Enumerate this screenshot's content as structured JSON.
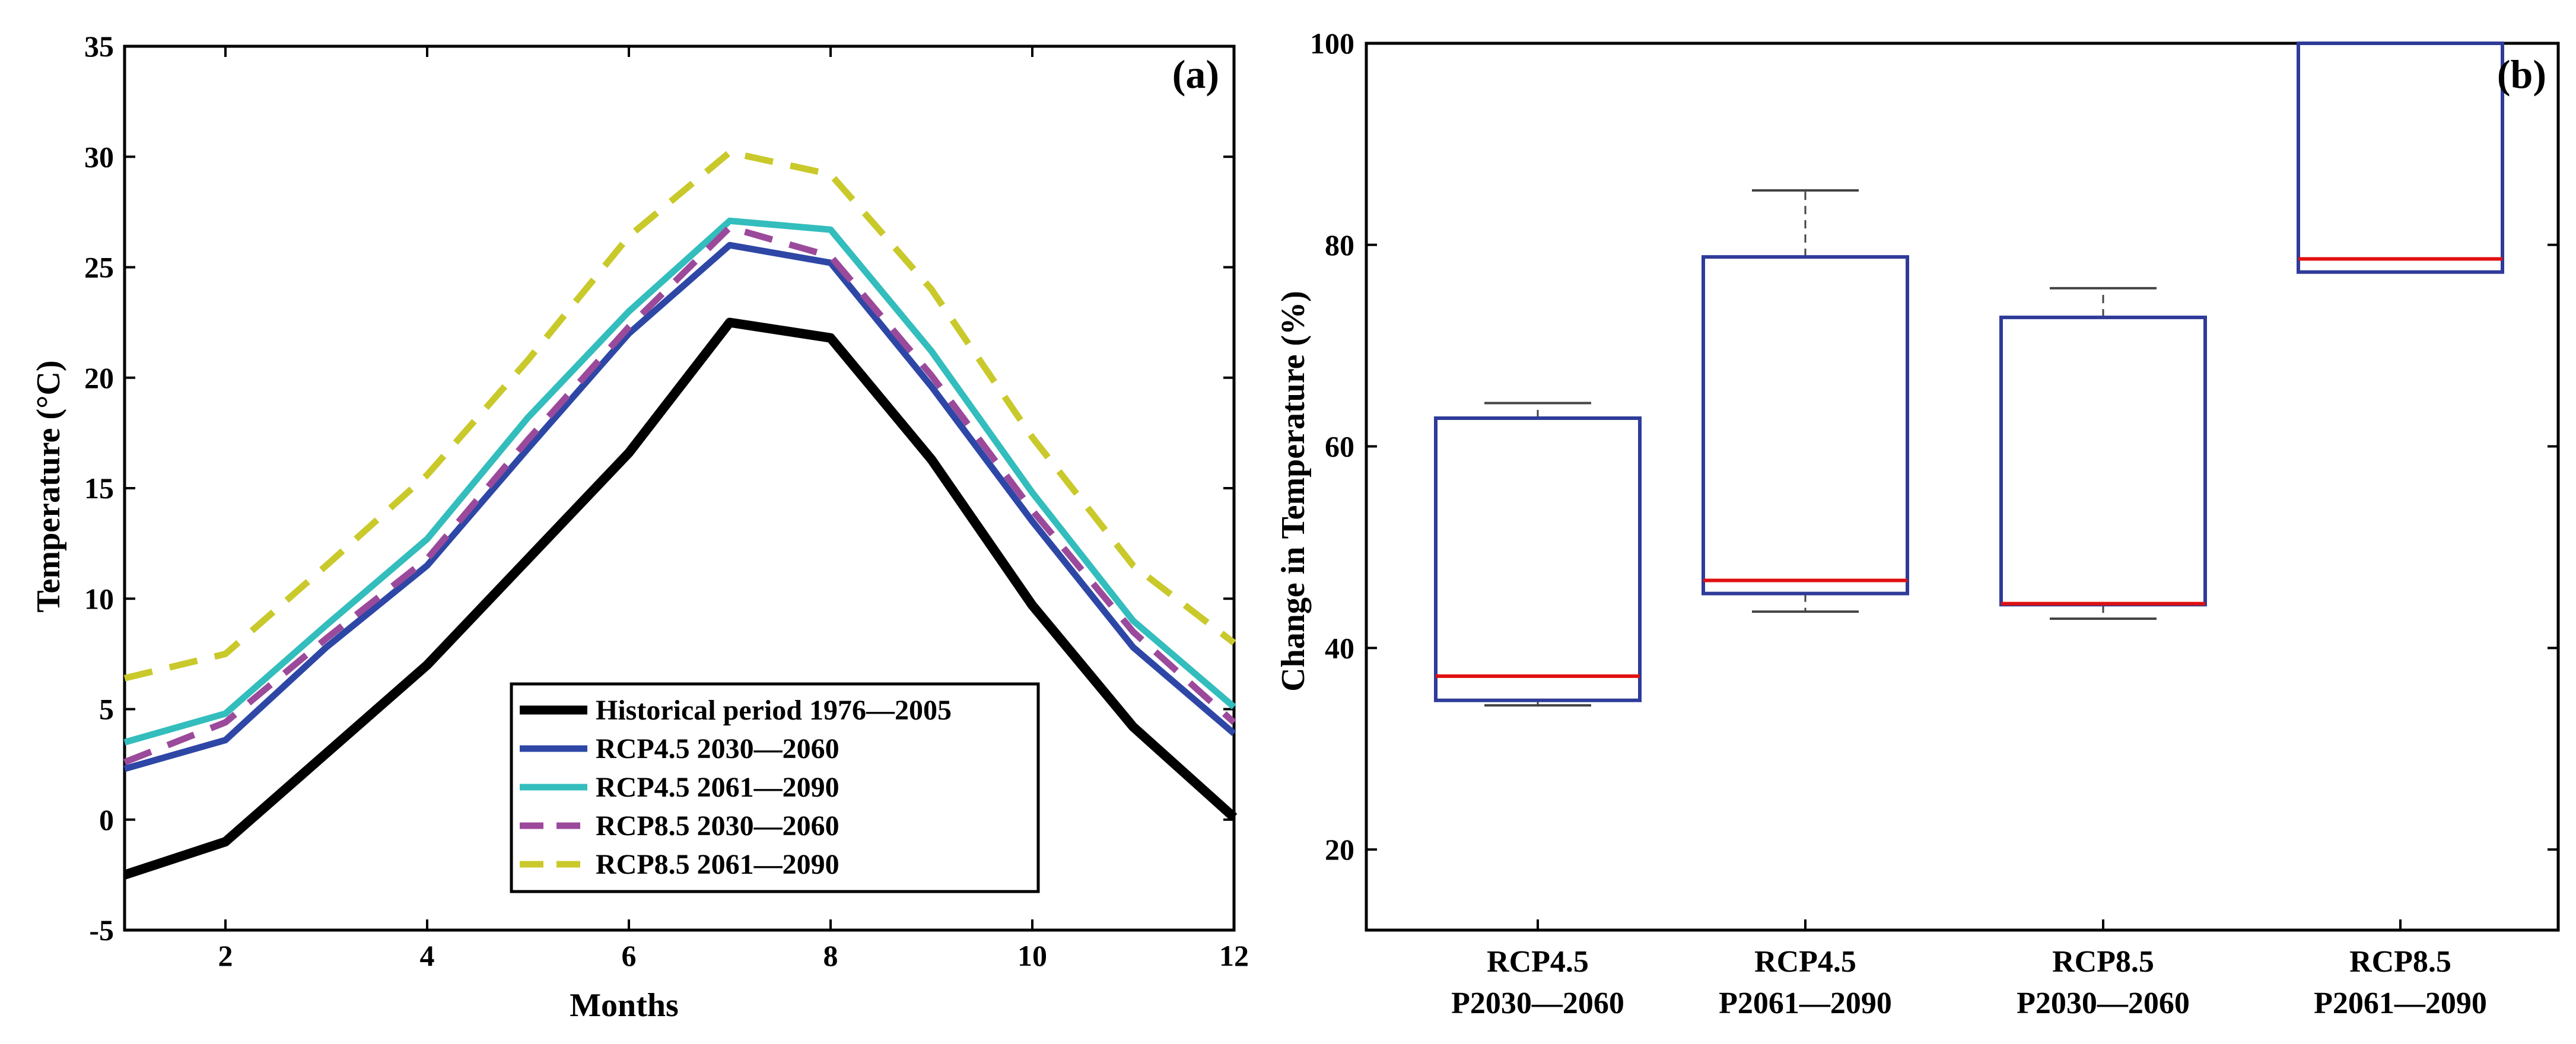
{
  "chart_data": [
    {
      "type": "line",
      "panel_label": "(a)",
      "title": "",
      "xlabel": "Months",
      "ylabel": "Temperature (°C)",
      "xlim": [
        1,
        12
      ],
      "ylim": [
        -5,
        35
      ],
      "xticks": [
        2,
        4,
        6,
        8,
        10,
        12
      ],
      "yticks": [
        -5,
        0,
        5,
        10,
        15,
        20,
        25,
        30,
        35
      ],
      "legend_position": "bottom-center",
      "x": [
        1,
        2,
        3,
        4,
        5,
        6,
        7,
        8,
        9,
        10,
        11,
        12
      ],
      "series": [
        {
          "name": "Historical period 1976—2005",
          "color": "#000000",
          "style": "solid",
          "values": [
            -2.5,
            -1.0,
            3.0,
            7.0,
            11.8,
            16.6,
            22.5,
            21.8,
            16.3,
            9.7,
            4.2,
            0.1
          ]
        },
        {
          "name": "RCP4.5 2030—2060",
          "color": "#2e47a6",
          "style": "solid",
          "values": [
            2.3,
            3.6,
            7.8,
            11.5,
            16.8,
            22.0,
            26.0,
            25.2,
            19.6,
            13.5,
            7.8,
            3.9
          ]
        },
        {
          "name": "RCP4.5 2061—2090",
          "color": "#33bdbd",
          "style": "solid",
          "values": [
            3.5,
            4.8,
            8.8,
            12.7,
            18.2,
            23.0,
            27.1,
            26.7,
            21.2,
            14.8,
            9.0,
            5.1
          ]
        },
        {
          "name": "RCP8.5 2030—2060",
          "color": "#9b4a9b",
          "style": "dashed",
          "values": [
            2.6,
            4.4,
            8.2,
            11.8,
            17.2,
            22.3,
            26.8,
            25.5,
            20.1,
            14.0,
            8.5,
            4.4
          ]
        },
        {
          "name": "RCP8.5 2061—2090",
          "color": "#c9c92b",
          "style": "dashed",
          "values": [
            6.4,
            7.5,
            11.5,
            15.6,
            20.8,
            26.4,
            30.2,
            29.2,
            24.0,
            17.3,
            11.5,
            8.0
          ]
        }
      ]
    },
    {
      "type": "box",
      "panel_label": "(b)",
      "title": "",
      "xlabel": "",
      "ylabel": "Change in Temperature (%)",
      "ylim": [
        12,
        100
      ],
      "yticks": [
        20,
        40,
        60,
        80,
        100
      ],
      "box_color": "#2e3b99",
      "median_color": "#e01010",
      "whisker_color": "#444444",
      "categories": [
        {
          "line1": "RCP4.5",
          "line2": "P2030—2060"
        },
        {
          "line1": "RCP4.5",
          "line2": "P2061—2090"
        },
        {
          "line1": "RCP8.5",
          "line2": "P2030—2060"
        },
        {
          "line1": "RCP8.5",
          "line2": "P2061—2090"
        }
      ],
      "boxes": [
        {
          "whisker_low": 34.3,
          "q1": 34.8,
          "median": 37.2,
          "q3": 62.8,
          "whisker_high": 64.3
        },
        {
          "whisker_low": 43.6,
          "q1": 45.4,
          "median": 46.7,
          "q3": 78.8,
          "whisker_high": 85.4
        },
        {
          "whisker_low": 42.9,
          "q1": 44.3,
          "median": 44.4,
          "q3": 72.8,
          "whisker_high": 75.7
        },
        {
          "whisker_low": 77.3,
          "q1": 77.3,
          "median": 78.6,
          "q3": 100,
          "whisker_high": 100
        }
      ]
    }
  ]
}
